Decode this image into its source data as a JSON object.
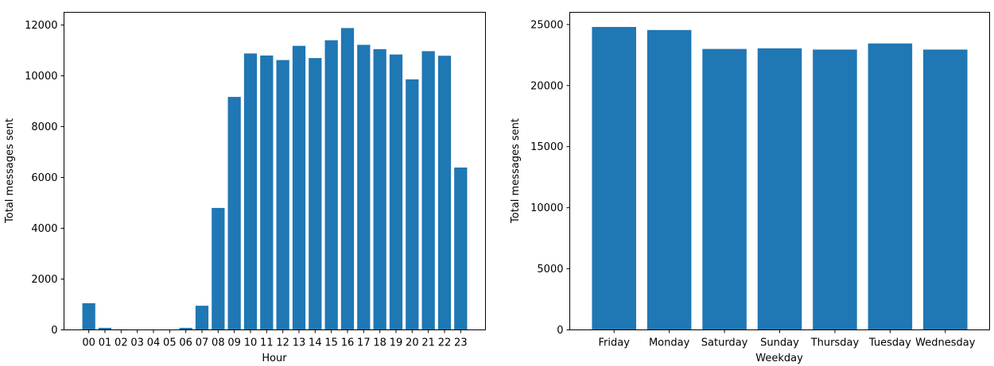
{
  "chart_data": [
    {
      "type": "bar",
      "xlabel": "Hour",
      "ylabel": "Total messages sent",
      "categories": [
        "00",
        "01",
        "02",
        "03",
        "04",
        "05",
        "06",
        "07",
        "08",
        "09",
        "10",
        "11",
        "12",
        "13",
        "14",
        "15",
        "16",
        "17",
        "18",
        "19",
        "20",
        "21",
        "22",
        "23"
      ],
      "values": [
        1050,
        80,
        20,
        5,
        15,
        5,
        80,
        950,
        4800,
        9170,
        10880,
        10800,
        10620,
        11180,
        10700,
        11400,
        11880,
        11220,
        11050,
        10840,
        9860,
        10970,
        10790,
        6390
      ],
      "ylim": [
        0,
        12500
      ],
      "yticks": [
        0,
        2000,
        4000,
        6000,
        8000,
        10000,
        12000
      ],
      "ytick_labels": [
        "0",
        "2000",
        "4000",
        "6000",
        "8000",
        "10000",
        "12000"
      ],
      "color": "#1f77b4",
      "grid": false
    },
    {
      "type": "bar",
      "xlabel": "Weekday",
      "ylabel": "Total messages sent",
      "categories": [
        "Friday",
        "Monday",
        "Saturday",
        "Sunday",
        "Thursday",
        "Tuesday",
        "Wednesday"
      ],
      "values": [
        24800,
        24550,
        23000,
        23050,
        22950,
        23450,
        22950
      ],
      "ylim": [
        0,
        26000
      ],
      "yticks": [
        0,
        5000,
        10000,
        15000,
        20000,
        25000
      ],
      "ytick_labels": [
        "0",
        "5000",
        "10000",
        "15000",
        "20000",
        "25000"
      ],
      "color": "#1f77b4",
      "grid": false
    }
  ]
}
